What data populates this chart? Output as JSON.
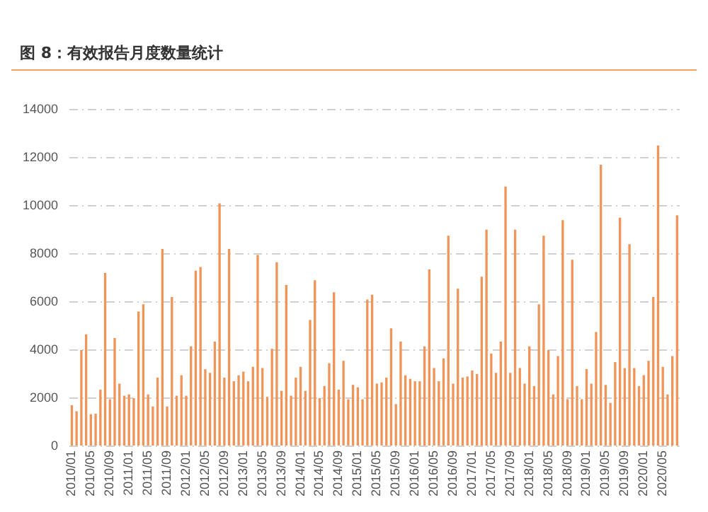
{
  "chart_data": {
    "type": "bar",
    "title": "图 8：有效报告月度数量统计",
    "categories": [
      "2010/01",
      null,
      null,
      null,
      "2010/05",
      null,
      null,
      null,
      "2010/09",
      null,
      null,
      null,
      "2011/01",
      null,
      null,
      null,
      "2011/05",
      null,
      null,
      null,
      "2011/09",
      null,
      null,
      null,
      "2012/01",
      null,
      null,
      null,
      "2012/05",
      null,
      null,
      null,
      "2012/09",
      null,
      null,
      null,
      "2013/01",
      null,
      null,
      null,
      "2013/05",
      null,
      null,
      null,
      "2013/09",
      null,
      null,
      null,
      "2014/01",
      null,
      null,
      null,
      "2014/05",
      null,
      null,
      null,
      "2014/09",
      null,
      null,
      null,
      "2015/01",
      null,
      null,
      null,
      "2015/05",
      null,
      null,
      null,
      "2015/09",
      null,
      null,
      null,
      "2016/01",
      null,
      null,
      null,
      "2016/05",
      null,
      null,
      null,
      "2016/09",
      null,
      null,
      null,
      "2017/01",
      null,
      null,
      null,
      "2017/05",
      null,
      null,
      null,
      "2017/09",
      null,
      null,
      null,
      "2018/01",
      null,
      null,
      null,
      "2018/05",
      null,
      null,
      null,
      "2018/09",
      null,
      null,
      null,
      "2019/01",
      null,
      null,
      null,
      "2019/05",
      null,
      null,
      null,
      "2019/09",
      null,
      null,
      null,
      "2020/01",
      null,
      null,
      null,
      "2020/05",
      null,
      null,
      null
    ],
    "values": [
      1700,
      1450,
      4000,
      4650,
      1330,
      1350,
      2350,
      7200,
      1950,
      4500,
      2600,
      2100,
      2150,
      2000,
      5600,
      5900,
      2150,
      1650,
      2850,
      8200,
      1650,
      6200,
      2100,
      2950,
      2100,
      4150,
      7300,
      7450,
      3200,
      3050,
      4350,
      10100,
      2850,
      8200,
      2700,
      2950,
      3100,
      2700,
      3300,
      7950,
      3250,
      2050,
      4050,
      7650,
      2300,
      6700,
      2100,
      2850,
      3300,
      2300,
      5250,
      6900,
      2000,
      2500,
      3450,
      6400,
      2350,
      3550,
      1950,
      2550,
      2450,
      1950,
      6100,
      6300,
      2600,
      2650,
      2850,
      4900,
      1750,
      4350,
      2950,
      2800,
      2700,
      2700,
      4150,
      7350,
      3250,
      2700,
      3650,
      8750,
      2600,
      6550,
      2850,
      2900,
      3150,
      3000,
      7050,
      9000,
      3850,
      3050,
      4350,
      10800,
      3050,
      9000,
      3250,
      2600,
      4150,
      2500,
      5900,
      8750,
      4000,
      2150,
      3750,
      9400,
      1950,
      7750,
      2500,
      1950,
      3200,
      2600,
      4750,
      11700,
      2550,
      1800,
      3500,
      9500,
      3250,
      8400,
      3250,
      2500,
      2950,
      3550,
      6200,
      12500,
      3300,
      2150,
      3750,
      9600
    ],
    "color": "#f0955a",
    "ylim": [
      0,
      14000
    ],
    "yticks": [
      0,
      2000,
      4000,
      6000,
      8000,
      10000,
      12000,
      14000
    ],
    "grid": "y"
  }
}
